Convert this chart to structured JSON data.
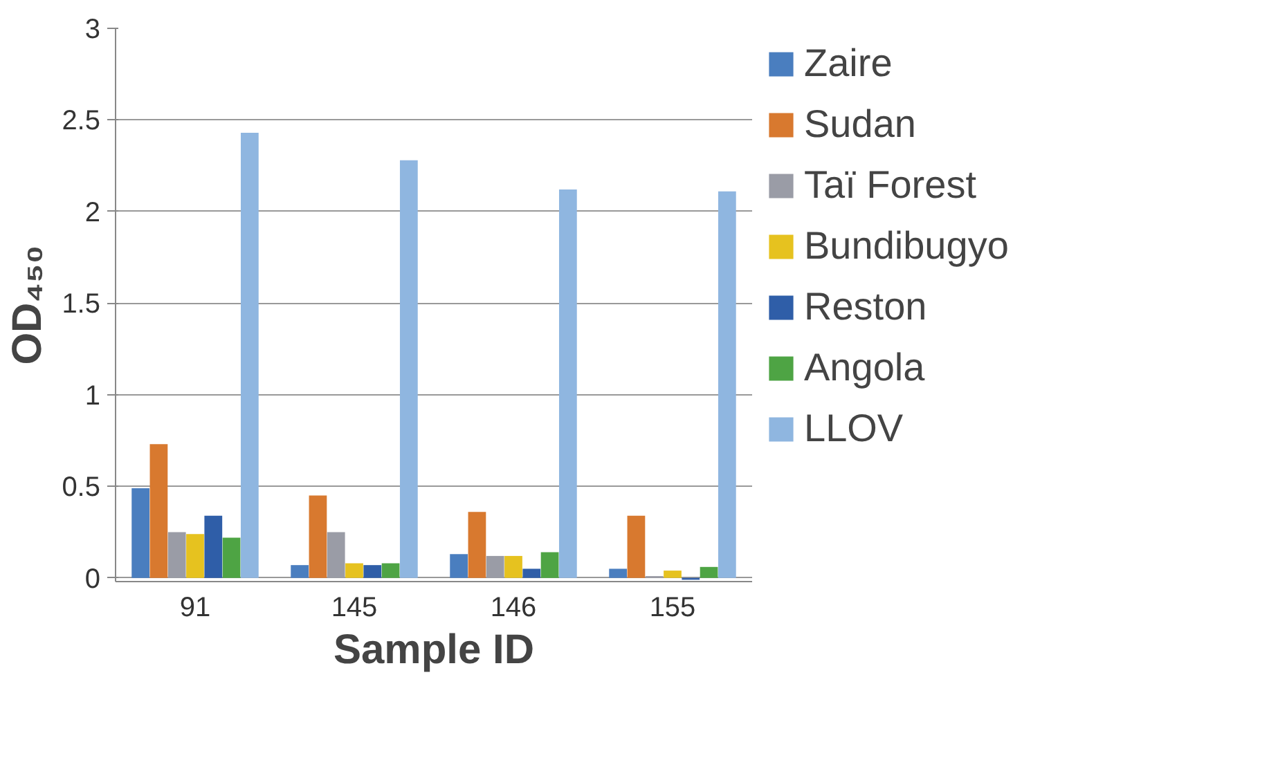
{
  "chart_data": {
    "type": "bar",
    "xlabel": "Sample ID",
    "ylabel": "OD₄₅₀",
    "categories": [
      "91",
      "145",
      "146",
      "155"
    ],
    "series": [
      {
        "name": "Zaire",
        "color": "#4a7ebf",
        "values": [
          0.49,
          0.07,
          0.13,
          0.05
        ]
      },
      {
        "name": "Sudan",
        "color": "#d8792f",
        "values": [
          0.73,
          0.45,
          0.36,
          0.34
        ]
      },
      {
        "name": "Taï Forest",
        "color": "#9a9ca6",
        "values": [
          0.25,
          0.25,
          0.12,
          0.01
        ]
      },
      {
        "name": "Bundibugyo",
        "color": "#e6c21f",
        "values": [
          0.24,
          0.08,
          0.12,
          0.04
        ]
      },
      {
        "name": "Reston",
        "color": "#2f5ea8",
        "values": [
          0.34,
          0.07,
          0.05,
          -0.01
        ]
      },
      {
        "name": "Angola",
        "color": "#4ea444",
        "values": [
          0.22,
          0.08,
          0.14,
          0.06
        ]
      },
      {
        "name": "LLOV",
        "color": "#8fb6e0",
        "values": [
          2.43,
          2.28,
          2.12,
          2.11
        ]
      }
    ],
    "ylim": [
      -0.02,
      3
    ],
    "yticks": [
      0,
      0.5,
      1,
      1.5,
      2,
      2.5,
      3
    ],
    "grid": "y",
    "legend": "right"
  }
}
